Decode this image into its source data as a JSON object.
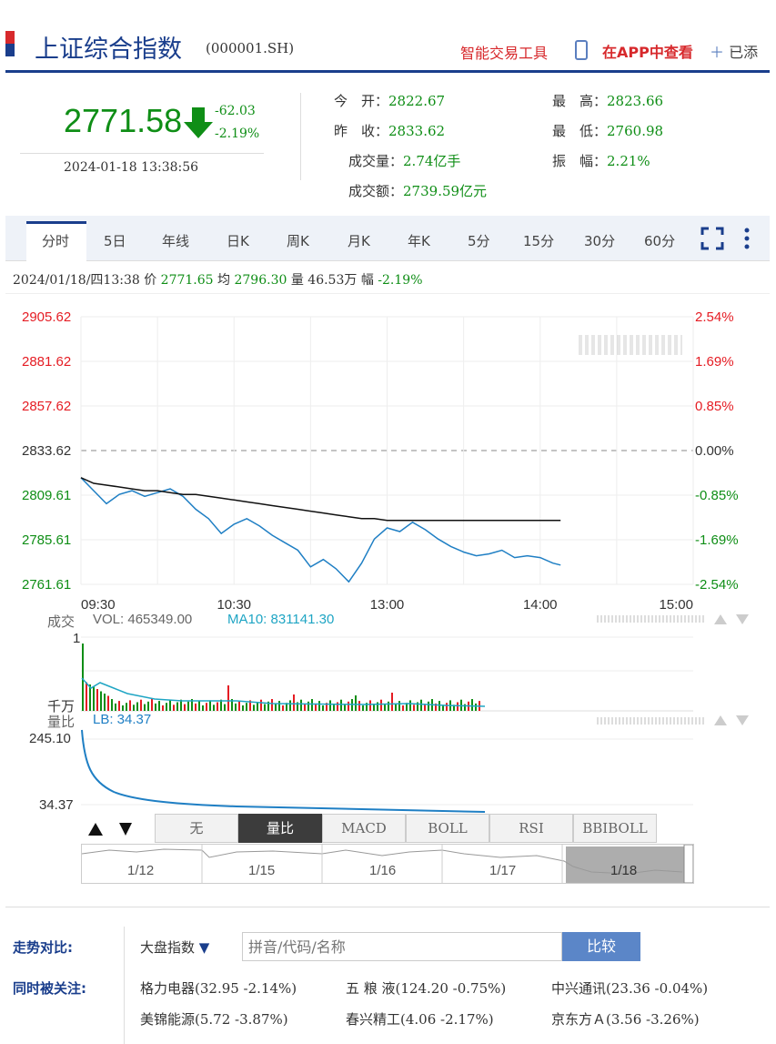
{
  "header": {
    "title": "上证综合指数",
    "code": "(000001.SH)",
    "tool_link": "智能交易工具",
    "app_link": "在APP中查看",
    "add_label": "已添"
  },
  "quote": {
    "price": "2771.58",
    "change": "-62.03",
    "change_pct": "-2.19%",
    "datetime": "2024-01-18 13:38:56",
    "items": [
      {
        "label": "今　开：",
        "value": "2822.67"
      },
      {
        "label": "最　高：",
        "value": "2823.66"
      },
      {
        "label": "昨　收：",
        "value": "2833.62"
      },
      {
        "label": "最　低：",
        "value": "2760.98"
      },
      {
        "label": "成交量：",
        "value": "2.74亿手"
      },
      {
        "label": "振　幅：",
        "value": "2.21%"
      },
      {
        "label": "成交额：",
        "value": "2739.59亿元"
      }
    ]
  },
  "tabs": [
    "分时",
    "5日",
    "年线",
    "日K",
    "周K",
    "月K",
    "年K",
    "5分",
    "15分",
    "30分",
    "60分"
  ],
  "active_tab": "分时",
  "info_line": {
    "date": "2024/01/18/四13:38",
    "price_label": "价",
    "price": "2771.65",
    "avg_label": "均",
    "avg": "2796.30",
    "vol_label": "量",
    "vol": "46.53万",
    "pct_label": "幅",
    "pct": "-2.19%"
  },
  "colors": {
    "up": "#e51c23",
    "down": "#0f8e16",
    "brand": "#1a3e8c",
    "price_line": "#1f7fc4",
    "avg_line": "#111111"
  },
  "chart_data": {
    "type": "line",
    "y_left_ticks": [
      "2905.62",
      "2881.62",
      "2857.62",
      "2833.62",
      "2809.61",
      "2785.61",
      "2761.61"
    ],
    "y_right_ticks": [
      "2.54%",
      "1.69%",
      "0.85%",
      "0.00%",
      "-0.85%",
      "-1.69%",
      "-2.54%"
    ],
    "x_ticks": [
      "09:30",
      "10:30",
      "13:00",
      "14:00",
      "15:00"
    ],
    "ylim": [
      2761.61,
      2905.62
    ],
    "prev_close": 2833.62,
    "x_minutes": [
      0,
      5,
      10,
      15,
      20,
      25,
      30,
      35,
      40,
      45,
      50,
      55,
      60,
      65,
      70,
      75,
      80,
      85,
      90,
      95,
      100,
      105,
      110,
      115,
      120,
      125,
      130,
      135,
      140,
      145,
      150,
      155,
      160,
      165,
      170,
      175,
      180,
      185,
      188
    ],
    "series": [
      {
        "values": [
          2819,
          2812,
          2805,
          2810,
          2812,
          2809,
          2811,
          2813,
          2809,
          2802,
          2797,
          2789,
          2794,
          2797,
          2793,
          2788,
          2784,
          2780,
          2771,
          2775,
          2770,
          2763,
          2773,
          2786,
          2792,
          2790,
          2795,
          2791,
          2786,
          2782,
          2779,
          2777,
          2778,
          2780,
          2776,
          2777,
          2776,
          2773,
          2772
        ]
      },
      {
        "values": [
          2819,
          2816,
          2815,
          2814,
          2813,
          2812,
          2812,
          2811,
          2810,
          2810,
          2809,
          2808,
          2807,
          2806,
          2805,
          2804,
          2803,
          2802,
          2801,
          2800,
          2799,
          2798,
          2797,
          2797,
          2796,
          2796,
          2796,
          2796,
          2796,
          2796,
          2796,
          2796,
          2796,
          2796,
          2796,
          2796,
          2796,
          2796,
          2796
        ]
      }
    ],
    "volume": {
      "title": "成交",
      "vol_text": "VOL: 465349.00",
      "ma_text": "MA10: 831141.30",
      "top_label": "1",
      "unit_label": "千万"
    },
    "ratio": {
      "title": "量比",
      "lb_text": "LB: 34.37",
      "top": "245.10",
      "bottom": "34.37"
    },
    "indicators": [
      "无",
      "量比",
      "MACD",
      "BOLL",
      "RSI",
      "BBIBOLL"
    ],
    "active_indicator": "量比",
    "mini_dates": [
      "1/12",
      "1/15",
      "1/16",
      "1/17",
      "1/18"
    ]
  },
  "compare": {
    "label": "走势对比:",
    "select": "大盘指数",
    "placeholder": "拼音/代码/名称",
    "button": "比较"
  },
  "related": {
    "label": "同时被关注:",
    "items": [
      [
        "格力电器(32.95 -2.14%)",
        "五 粮 液(124.20 -0.75%)",
        "中兴通讯(23.36 -0.04%)"
      ],
      [
        "美锦能源(5.72 -3.87%)",
        "春兴精工(4.06 -2.17%)",
        "京东方Ａ(3.56 -3.26%)"
      ]
    ]
  }
}
